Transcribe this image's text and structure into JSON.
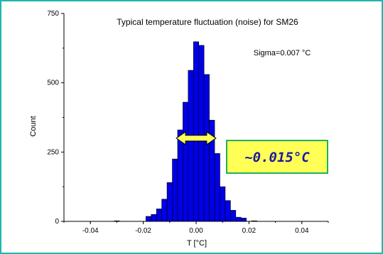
{
  "chart_data": {
    "type": "bar",
    "title": "Typical temperature fluctuation (noise) for SM26",
    "xlabel": "T [°C]",
    "ylabel": "Count",
    "xlim": [
      -0.05,
      0.05
    ],
    "ylim": [
      0,
      750
    ],
    "xticks": [
      -0.04,
      -0.02,
      0.0,
      0.02,
      0.04
    ],
    "xtick_labels": [
      "-0.04",
      "-0.02",
      "0.00",
      "0.02",
      "0.04"
    ],
    "yticks": [
      0,
      250,
      500,
      750
    ],
    "ytick_labels": [
      "0",
      "250",
      "500",
      "750"
    ],
    "bin_width": 0.002,
    "bins": [
      {
        "x": -0.03,
        "value": 2
      },
      {
        "x": -0.018,
        "value": 18
      },
      {
        "x": -0.016,
        "value": 25
      },
      {
        "x": -0.014,
        "value": 45
      },
      {
        "x": -0.012,
        "value": 80
      },
      {
        "x": -0.01,
        "value": 140
      },
      {
        "x": -0.008,
        "value": 225
      },
      {
        "x": -0.006,
        "value": 330
      },
      {
        "x": -0.004,
        "value": 430
      },
      {
        "x": -0.002,
        "value": 545
      },
      {
        "x": 0.0,
        "value": 648
      },
      {
        "x": 0.002,
        "value": 635
      },
      {
        "x": 0.004,
        "value": 530
      },
      {
        "x": 0.006,
        "value": 365
      },
      {
        "x": 0.008,
        "value": 245
      },
      {
        "x": 0.01,
        "value": 125
      },
      {
        "x": 0.012,
        "value": 75
      },
      {
        "x": 0.014,
        "value": 40
      },
      {
        "x": 0.016,
        "value": 15
      },
      {
        "x": 0.018,
        "value": 12
      },
      {
        "x": 0.022,
        "value": 2
      }
    ],
    "bar_color": "#0000e6",
    "annotation": "Sigma=0.007 °C",
    "callout": {
      "text": "~0.015°C",
      "from": -0.0075,
      "to": 0.0075,
      "level": 300,
      "fill": "#ffff55",
      "border": "#20b060",
      "text_color": "#1a1aa0"
    },
    "grid": false,
    "legend": "none"
  }
}
